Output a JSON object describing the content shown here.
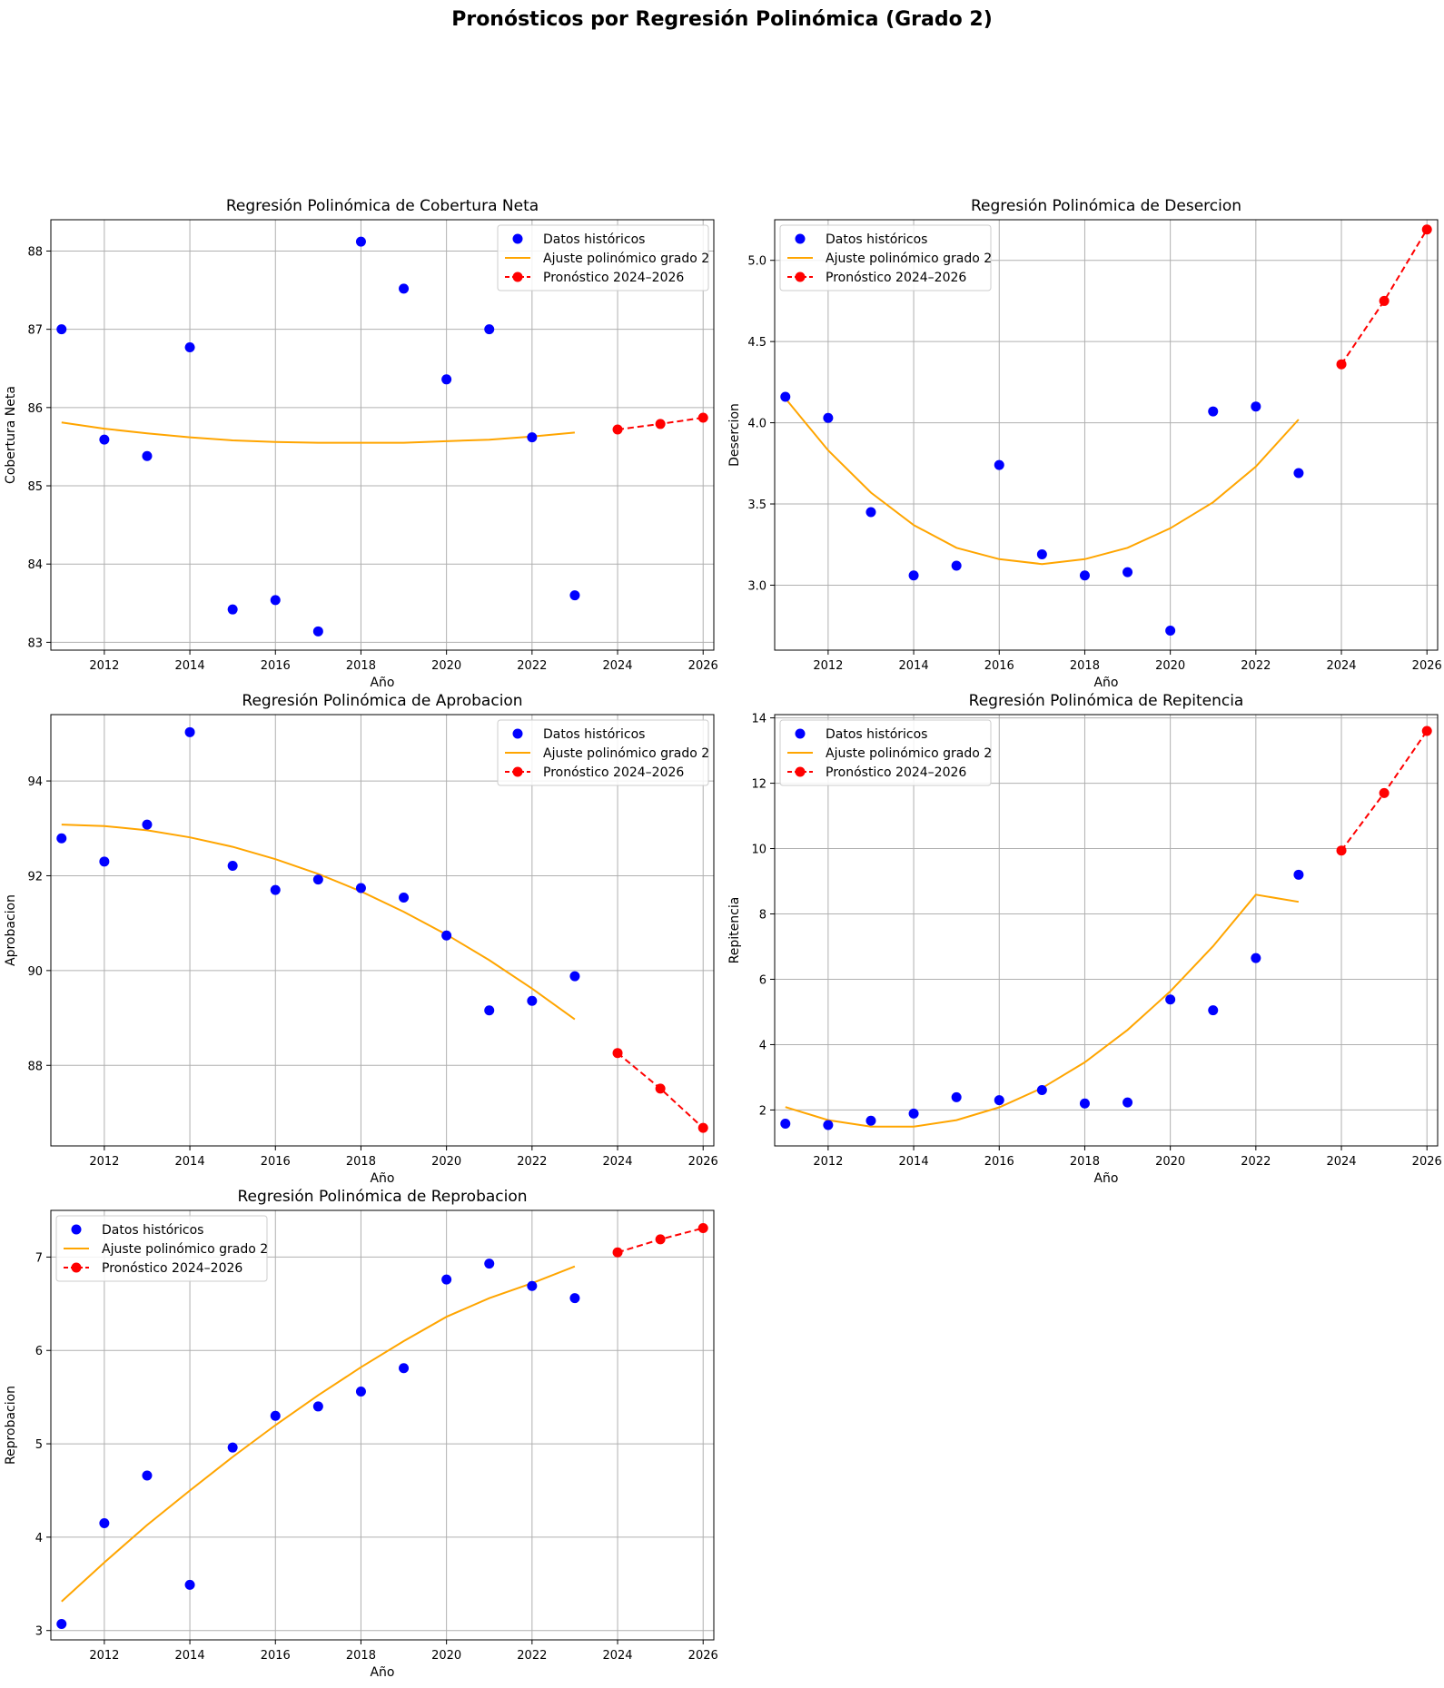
{
  "figure": {
    "suptitle": "Pronósticos por Regresión Polinómica (Grado 2)"
  },
  "colors": {
    "historical": "#0000ff",
    "fit": "#ffa500",
    "forecast": "#ff0000",
    "grid": "#b0b0b0"
  },
  "chart_data": [
    {
      "type": "scatter",
      "title": "Regresión Polinómica de Cobertura Neta",
      "xlabel": "Año",
      "ylabel": "Cobertura Neta",
      "xlim": [
        2010.75,
        2026.25
      ],
      "ylim": [
        82.9,
        88.4
      ],
      "xticks": [
        2012,
        2014,
        2016,
        2018,
        2020,
        2022,
        2024,
        2026
      ],
      "yticks": [
        83,
        84,
        85,
        86,
        87,
        88
      ],
      "ytick_labels": [
        "83",
        "84",
        "85",
        "86",
        "87",
        "88"
      ],
      "grid": true,
      "legend": "upper right",
      "series": [
        {
          "name": "Datos históricos",
          "kind": "scatter",
          "x": [
            2011,
            2012,
            2013,
            2014,
            2015,
            2016,
            2017,
            2018,
            2019,
            2020,
            2021,
            2022,
            2023
          ],
          "y": [
            87.0,
            85.59,
            85.38,
            86.77,
            83.42,
            83.54,
            83.14,
            88.12,
            87.52,
            86.36,
            87.0,
            85.62,
            83.6
          ]
        },
        {
          "name": "Ajuste polinómico grado 2",
          "kind": "line",
          "x": [
            2011,
            2012,
            2013,
            2014,
            2015,
            2016,
            2017,
            2018,
            2019,
            2020,
            2021,
            2022,
            2023
          ],
          "y": [
            85.81,
            85.73,
            85.67,
            85.62,
            85.58,
            85.56,
            85.55,
            85.55,
            85.55,
            85.57,
            85.59,
            85.63,
            85.68
          ]
        },
        {
          "name": "Pronóstico 2024–2026",
          "kind": "forecast",
          "x": [
            2024,
            2025,
            2026
          ],
          "y": [
            85.72,
            85.79,
            85.87
          ]
        }
      ]
    },
    {
      "type": "scatter",
      "title": "Regresión Polinómica de Desercion",
      "xlabel": "Año",
      "ylabel": "Desercion",
      "xlim": [
        2010.75,
        2026.25
      ],
      "ylim": [
        2.6,
        5.25
      ],
      "xticks": [
        2012,
        2014,
        2016,
        2018,
        2020,
        2022,
        2024,
        2026
      ],
      "yticks": [
        3.0,
        3.5,
        4.0,
        4.5,
        5.0
      ],
      "ytick_labels": [
        "3.0",
        "3.5",
        "4.0",
        "4.5",
        "5.0"
      ],
      "grid": true,
      "legend": "upper left",
      "series": [
        {
          "name": "Datos históricos",
          "kind": "scatter",
          "x": [
            2011,
            2012,
            2013,
            2014,
            2015,
            2016,
            2017,
            2018,
            2019,
            2020,
            2021,
            2022,
            2023
          ],
          "y": [
            4.16,
            4.03,
            3.45,
            3.06,
            3.12,
            3.74,
            3.19,
            3.06,
            3.08,
            2.72,
            4.07,
            4.1,
            3.69
          ]
        },
        {
          "name": "Ajuste polinómico grado 2",
          "kind": "line",
          "x": [
            2011,
            2012,
            2013,
            2014,
            2015,
            2016,
            2017,
            2018,
            2019,
            2020,
            2021,
            2022,
            2023
          ],
          "y": [
            4.15,
            3.83,
            3.57,
            3.37,
            3.23,
            3.16,
            3.13,
            3.16,
            3.23,
            3.35,
            3.51,
            3.73,
            4.02
          ]
        },
        {
          "name": "Pronóstico 2024–2026",
          "kind": "forecast",
          "x": [
            2024,
            2025,
            2026
          ],
          "y": [
            4.36,
            4.75,
            5.19
          ]
        }
      ]
    },
    {
      "type": "scatter",
      "title": "Regresión Polinómica de Aprobacion",
      "xlabel": "Año",
      "ylabel": "Aprobacion",
      "xlim": [
        2010.75,
        2026.25
      ],
      "ylim": [
        86.3,
        95.4
      ],
      "xticks": [
        2012,
        2014,
        2016,
        2018,
        2020,
        2022,
        2024,
        2026
      ],
      "yticks": [
        88,
        90,
        92,
        94
      ],
      "ytick_labels": [
        "88",
        "90",
        "92",
        "94"
      ],
      "grid": true,
      "legend": "upper right",
      "series": [
        {
          "name": "Datos históricos",
          "kind": "scatter",
          "x": [
            2011,
            2012,
            2013,
            2014,
            2015,
            2016,
            2017,
            2018,
            2019,
            2020,
            2021,
            2022,
            2023
          ],
          "y": [
            92.79,
            92.3,
            93.08,
            95.03,
            92.21,
            91.7,
            91.92,
            91.74,
            91.54,
            90.74,
            89.16,
            89.36,
            89.88
          ]
        },
        {
          "name": "Ajuste polinómico grado 2",
          "kind": "line",
          "x": [
            2011,
            2012,
            2013,
            2014,
            2015,
            2016,
            2017,
            2018,
            2019,
            2020,
            2021,
            2022,
            2023
          ],
          "y": [
            93.08,
            93.05,
            92.96,
            92.81,
            92.61,
            92.35,
            92.04,
            91.67,
            91.24,
            90.76,
            90.22,
            89.62,
            88.97
          ]
        },
        {
          "name": "Pronóstico 2024–2026",
          "kind": "forecast",
          "x": [
            2024,
            2025,
            2026
          ],
          "y": [
            88.26,
            87.51,
            86.68
          ]
        }
      ]
    },
    {
      "type": "scatter",
      "title": "Regresión Polinómica de Repitencia",
      "xlabel": "Año",
      "ylabel": "Repitencia",
      "xlim": [
        2010.75,
        2026.25
      ],
      "ylim": [
        0.9,
        14.1
      ],
      "xticks": [
        2012,
        2014,
        2016,
        2018,
        2020,
        2022,
        2024,
        2026
      ],
      "yticks": [
        2,
        4,
        6,
        8,
        10,
        12,
        14
      ],
      "ytick_labels": [
        "2",
        "4",
        "6",
        "8",
        "10",
        "12",
        "14"
      ],
      "grid": true,
      "legend": "upper left",
      "series": [
        {
          "name": "Datos históricos",
          "kind": "scatter",
          "x": [
            2011,
            2012,
            2013,
            2014,
            2015,
            2016,
            2017,
            2018,
            2019,
            2020,
            2021,
            2022,
            2023
          ],
          "y": [
            1.58,
            1.54,
            1.67,
            1.89,
            2.39,
            2.3,
            2.61,
            2.2,
            2.23,
            5.38,
            5.05,
            6.65,
            9.2
          ]
        },
        {
          "name": "Ajuste polinómico grado 2",
          "kind": "line",
          "x": [
            2011,
            2012,
            2013,
            2014,
            2015,
            2016,
            2017,
            2018,
            2019,
            2020,
            2021,
            2022,
            2023
          ],
          "y": [
            2.09,
            1.69,
            1.49,
            1.49,
            1.69,
            2.08,
            2.67,
            3.46,
            4.45,
            5.63,
            7.01,
            8.59,
            8.37
          ]
        },
        {
          "name": "Pronóstico 2024–2026",
          "kind": "forecast",
          "x": [
            2024,
            2025,
            2026
          ],
          "y": [
            9.94,
            11.7,
            13.6
          ]
        }
      ]
    },
    {
      "type": "scatter",
      "title": "Regresión Polinómica de Reprobacion",
      "xlabel": "Año",
      "ylabel": "Reprobacion",
      "xlim": [
        2010.75,
        2026.25
      ],
      "ylim": [
        2.9,
        7.5
      ],
      "xticks": [
        2012,
        2014,
        2016,
        2018,
        2020,
        2022,
        2024,
        2026
      ],
      "yticks": [
        3,
        4,
        5,
        6,
        7
      ],
      "ytick_labels": [
        "3",
        "4",
        "5",
        "6",
        "7"
      ],
      "grid": true,
      "legend": "upper left",
      "series": [
        {
          "name": "Datos históricos",
          "kind": "scatter",
          "x": [
            2011,
            2012,
            2013,
            2014,
            2015,
            2016,
            2017,
            2018,
            2019,
            2020,
            2021,
            2022,
            2023
          ],
          "y": [
            3.07,
            4.15,
            4.66,
            3.49,
            4.96,
            5.3,
            5.4,
            5.56,
            5.81,
            6.76,
            6.93,
            6.69,
            6.56
          ]
        },
        {
          "name": "Ajuste polinómico grado 2",
          "kind": "line",
          "x": [
            2011,
            2012,
            2013,
            2014,
            2015,
            2016,
            2017,
            2018,
            2019,
            2020,
            2021,
            2022,
            2023
          ],
          "y": [
            3.31,
            3.73,
            4.13,
            4.5,
            4.86,
            5.2,
            5.52,
            5.82,
            6.1,
            6.36,
            6.56,
            6.72,
            6.9
          ]
        },
        {
          "name": "Pronóstico 2024–2026",
          "kind": "forecast",
          "x": [
            2024,
            2025,
            2026
          ],
          "y": [
            7.05,
            7.19,
            7.31
          ]
        }
      ]
    }
  ]
}
